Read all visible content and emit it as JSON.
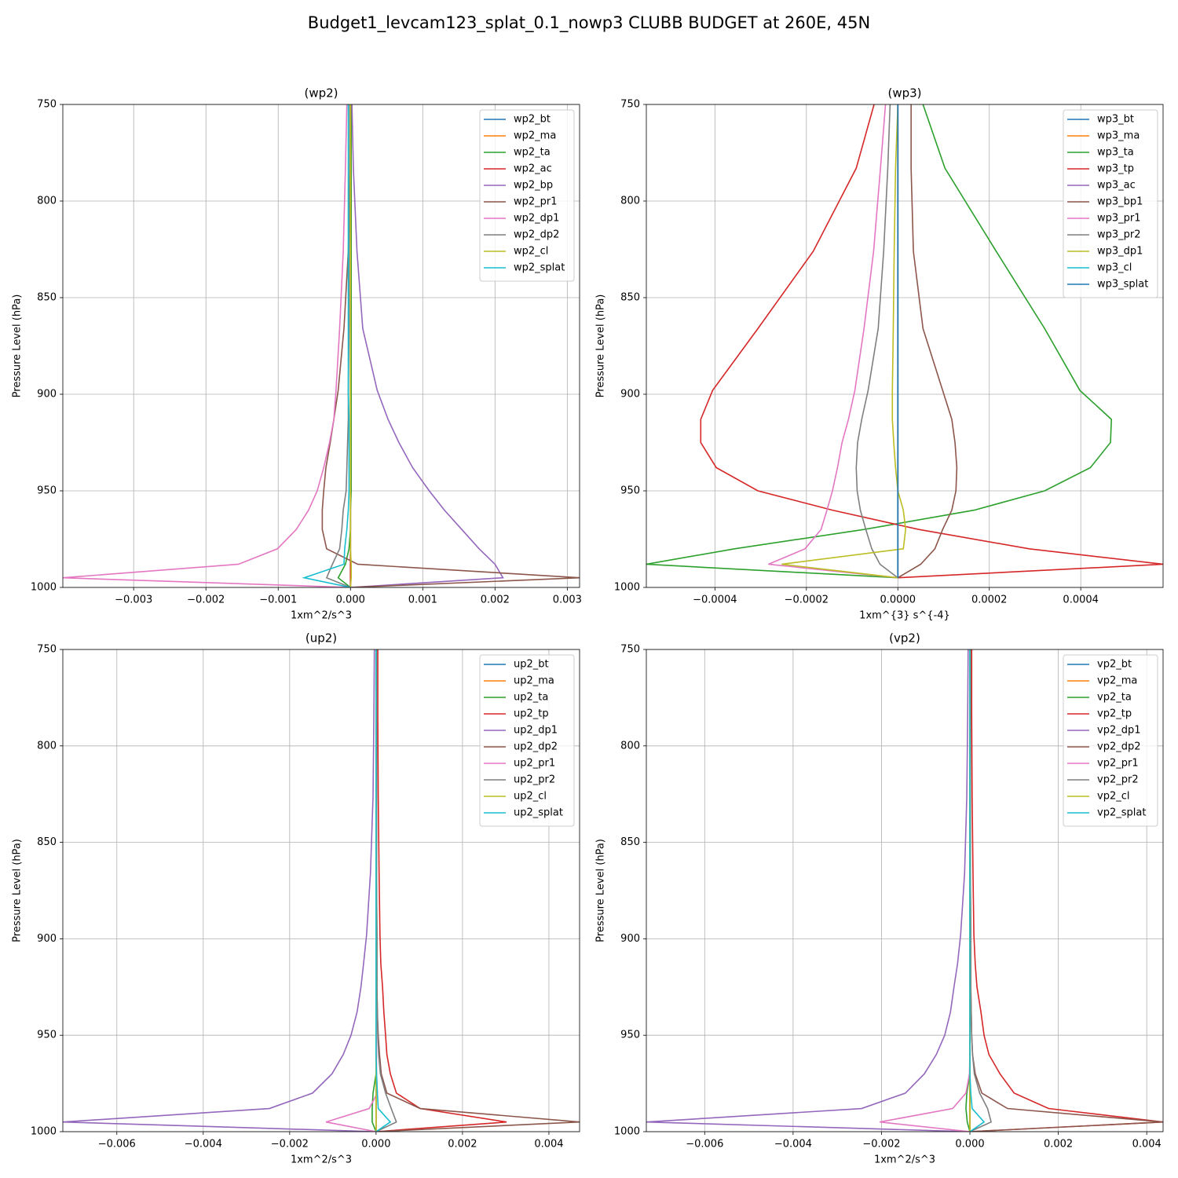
{
  "title": "Budget1_levcam123_splat_0.1_nowp3 CLUBB BUDGET at 260E, 45N",
  "chart_data": [
    {
      "type": "line",
      "title": "(wp2)",
      "xlabel": "1xm^2/s^3",
      "ylabel": "Pressure Level (hPa)",
      "grid": true,
      "legend": "upper right",
      "y": [
        750,
        783,
        826,
        866,
        898,
        913,
        925,
        938,
        950,
        960,
        970,
        980,
        988,
        995,
        1000
      ],
      "ylim": [
        1000,
        750
      ],
      "yticks": [
        750,
        800,
        850,
        900,
        950,
        1000
      ],
      "xlim": [
        -0.00398,
        0.00317
      ],
      "xticks": [
        {
          "value": -0.003,
          "label": "−0.003"
        },
        {
          "value": -0.002,
          "label": "−0.002"
        },
        {
          "value": -0.001,
          "label": "−0.001"
        },
        {
          "value": 0,
          "label": "0.000"
        },
        0.001,
        0.002,
        0.003
      ],
      "series": [
        {
          "name": "wp2_bt",
          "color": "#1f77b4",
          "values": [
            0,
            0,
            0,
            0,
            0,
            0,
            0,
            0,
            0,
            0,
            0,
            0,
            0,
            0,
            0
          ]
        },
        {
          "name": "wp2_ma",
          "color": "#ff7f0e",
          "values": [
            0,
            0,
            0,
            0,
            0,
            0,
            0,
            0,
            0,
            0,
            0,
            0,
            0,
            0,
            0
          ]
        },
        {
          "name": "wp2_ta",
          "color": "#2ca02c",
          "values": [
            1e-05,
            1e-05,
            1e-05,
            1e-05,
            1e-05,
            1e-05,
            1e-05,
            1e-05,
            1e-05,
            0,
            0,
            -2e-05,
            -7e-05,
            -0.00017,
            0
          ]
        },
        {
          "name": "wp2_ac",
          "color": "#d62728",
          "values": [
            0,
            0,
            0,
            0,
            0,
            0,
            0,
            0,
            0,
            0,
            0,
            0,
            0,
            0,
            0
          ]
        },
        {
          "name": "wp2_bp",
          "color": "#9467bd",
          "values": [
            2e-05,
            4e-05,
            9e-05,
            0.00017,
            0.00037,
            0.00052,
            0.00067,
            0.00086,
            0.00109,
            0.0013,
            0.00154,
            0.00178,
            0.002,
            0.00211,
            0
          ]
        },
        {
          "name": "wp2_pr1",
          "color": "#8c564b",
          "values": [
            0,
            -1e-05,
            -3e-05,
            -9e-05,
            -0.00017,
            -0.00023,
            -0.00028,
            -0.00034,
            -0.00037,
            -0.00039,
            -0.00039,
            -0.00033,
            0.0001,
            0.00317,
            0
          ]
        },
        {
          "name": "wp2_dp1",
          "color": "#e377c2",
          "values": [
            -5e-05,
            -7e-05,
            -0.0001,
            -0.00015,
            -0.0002,
            -0.00023,
            -0.00029,
            -0.00037,
            -0.00046,
            -0.00058,
            -0.00075,
            -0.00101,
            -0.00155,
            -0.00398,
            0
          ]
        },
        {
          "name": "wp2_dp2",
          "color": "#7f7f7f",
          "values": [
            -1e-05,
            -1e-05,
            -2e-05,
            -2e-05,
            -3e-05,
            -3e-05,
            -4e-05,
            -5e-05,
            -6e-05,
            -0.0001,
            -0.00012,
            -0.00015,
            -0.00025,
            -0.00033,
            0
          ]
        },
        {
          "name": "wp2_cl",
          "color": "#bcbd22",
          "values": [
            0,
            0,
            0,
            0,
            0,
            0,
            0,
            0,
            0,
            0,
            0,
            0,
            1e-05,
            1e-05,
            0
          ]
        },
        {
          "name": "wp2_splat",
          "color": "#17becf",
          "values": [
            -3e-05,
            -3e-05,
            -3e-05,
            -3e-05,
            -3e-05,
            -2e-05,
            -2e-05,
            -2e-05,
            -2e-05,
            -3e-05,
            -5e-05,
            -8e-05,
            -9e-05,
            -0.00064,
            0
          ]
        }
      ]
    },
    {
      "type": "line",
      "title": "(wp3)",
      "xlabel": "1xm^{3} s^{-4}",
      "ylabel": "Pressure Level (hPa)",
      "grid": true,
      "legend": "upper right",
      "y": [
        750,
        783,
        826,
        866,
        898,
        913,
        925,
        938,
        950,
        960,
        970,
        980,
        988,
        995,
        1000
      ],
      "ylim": [
        1000,
        750
      ],
      "yticks": [
        750,
        800,
        850,
        900,
        950,
        1000
      ],
      "xlim": [
        -0.00055,
        0.00058
      ],
      "xticks": [
        {
          "value": -0.0004,
          "label": "−0.0004"
        },
        {
          "value": -0.0002,
          "label": "−0.0002"
        },
        {
          "value": 0,
          "label": "0.0000"
        },
        0.0002,
        0.0004
      ],
      "series": [
        {
          "name": "wp3_bt",
          "color": "#1f77b4",
          "values": [
            0,
            0,
            0,
            0,
            0,
            0,
            0,
            0,
            0,
            0,
            0,
            0,
            0,
            0,
            null
          ]
        },
        {
          "name": "wp3_ma",
          "color": "#ff7f0e",
          "values": [
            0,
            0,
            0,
            0,
            0,
            0,
            0,
            0,
            0,
            0,
            0,
            0,
            0,
            0,
            null
          ]
        },
        {
          "name": "wp3_ta",
          "color": "#2ca02c",
          "values": [
            5.5e-05,
            0.000103,
            0.000215,
            0.000321,
            0.000398,
            0.000467,
            0.000465,
            0.000421,
            0.000321,
            0.000167,
            -7.4e-05,
            -0.000357,
            -0.00055,
            0,
            null
          ]
        },
        {
          "name": "wp3_tp",
          "color": "#d62728",
          "values": [
            -5.2e-05,
            -9.1e-05,
            -0.000185,
            -0.000306,
            -0.000405,
            -0.000431,
            -0.000431,
            -0.000397,
            -0.000306,
            -0.000143,
            4.6e-05,
            0.000287,
            0.00058,
            0,
            null
          ]
        },
        {
          "name": "wp3_ac",
          "color": "#9467bd",
          "values": [
            0,
            0,
            0,
            0,
            0,
            0,
            0,
            0,
            0,
            0,
            0,
            0,
            0,
            0,
            null
          ]
        },
        {
          "name": "wp3_bp1",
          "color": "#8c564b",
          "values": [
            2.9e-05,
            2.9e-05,
            3.4e-05,
            5.5e-05,
            9.8e-05,
            0.000118,
            0.000125,
            0.000129,
            0.000127,
            0.000118,
            9.8e-05,
            8.1e-05,
            5e-05,
            0,
            null
          ]
        },
        {
          "name": "wp3_pr1",
          "color": "#e377c2",
          "values": [
            -2.7e-05,
            -3.8e-05,
            -5.3e-05,
            -7.4e-05,
            -9.4e-05,
            -0.000108,
            -0.000122,
            -0.000132,
            -0.000143,
            -0.000155,
            -0.000168,
            -0.000203,
            -0.000283,
            0,
            null
          ]
        },
        {
          "name": "wp3_pr2",
          "color": "#7f7f7f",
          "values": [
            -1.7e-05,
            -2.2e-05,
            -3.1e-05,
            -4.3e-05,
            -6.5e-05,
            -7.9e-05,
            -8.8e-05,
            -9.1e-05,
            -8.9e-05,
            -8.2e-05,
            -7e-05,
            -5.7e-05,
            -3.9e-05,
            0,
            null
          ]
        },
        {
          "name": "wp3_dp1",
          "color": "#bcbd22",
          "values": [
            0,
            -5e-06,
            -8e-06,
            -1e-05,
            -1.2e-05,
            -1.2e-05,
            -9e-06,
            -5e-06,
            0,
            1.2e-05,
            1.7e-05,
            1.2e-05,
            -0.000254,
            0,
            null
          ]
        },
        {
          "name": "wp3_cl",
          "color": "#17becf",
          "values": [
            0,
            0,
            0,
            0,
            0,
            0,
            0,
            0,
            0,
            0,
            0,
            0,
            0,
            0,
            null
          ]
        },
        {
          "name": "wp3_splat",
          "color": "#1f77b4",
          "values": [
            0,
            0,
            0,
            0,
            0,
            0,
            0,
            0,
            0,
            0,
            0,
            0,
            0,
            0,
            null
          ]
        }
      ]
    },
    {
      "type": "line",
      "title": "(up2)",
      "xlabel": "1xm^2/s^3",
      "ylabel": "Pressure Level (hPa)",
      "grid": true,
      "legend": "upper right",
      "y": [
        750,
        783,
        826,
        866,
        898,
        913,
        925,
        938,
        950,
        960,
        970,
        980,
        988,
        995,
        1000
      ],
      "ylim": [
        1000,
        750
      ],
      "yticks": [
        750,
        800,
        850,
        900,
        950,
        1000
      ],
      "xlim": [
        -0.00725,
        0.00471
      ],
      "xticks": [
        {
          "value": -0.006,
          "label": "−0.006"
        },
        {
          "value": -0.004,
          "label": "−0.004"
        },
        {
          "value": -0.002,
          "label": "−0.002"
        },
        {
          "value": 0,
          "label": "0.000"
        },
        0.002,
        0.004
      ],
      "series": [
        {
          "name": "up2_bt",
          "color": "#1f77b4",
          "values": [
            0,
            0,
            0,
            0,
            0,
            0,
            0,
            0,
            0,
            0,
            0,
            0,
            0,
            0,
            0
          ]
        },
        {
          "name": "up2_ma",
          "color": "#ff7f0e",
          "values": [
            0,
            0,
            0,
            0,
            0,
            0,
            0,
            0,
            0,
            0,
            0,
            0,
            0,
            0,
            0
          ]
        },
        {
          "name": "up2_ta",
          "color": "#2ca02c",
          "values": [
            0,
            0,
            0,
            0,
            0,
            0,
            0,
            0,
            0,
            0,
            0,
            -7e-05,
            -9e-05,
            -9e-05,
            0
          ]
        },
        {
          "name": "up2_tp",
          "color": "#d62728",
          "values": [
            4e-05,
            4e-05,
            5e-05,
            7e-05,
            9e-05,
            0.00011,
            0.00015,
            0.00018,
            0.00022,
            0.00025,
            0.00033,
            0.00047,
            0.00102,
            0.00302,
            0
          ]
        },
        {
          "name": "up2_dp1",
          "color": "#9467bd",
          "values": [
            -4e-05,
            -5e-05,
            -7e-05,
            -0.00013,
            -0.00022,
            -0.00029,
            -0.00035,
            -0.00044,
            -0.00058,
            -0.00076,
            -0.00102,
            -0.00147,
            -0.00247,
            -0.00725,
            0
          ]
        },
        {
          "name": "up2_dp2",
          "color": "#8c564b",
          "values": [
            1e-05,
            1e-05,
            1e-05,
            1e-05,
            2e-05,
            2e-05,
            2e-05,
            3e-05,
            5e-05,
            8e-05,
            0.00012,
            0.00025,
            0.00102,
            0.00471,
            0
          ]
        },
        {
          "name": "up2_pr1",
          "color": "#e377c2",
          "values": [
            1e-05,
            1e-05,
            1e-05,
            1e-05,
            1e-05,
            1e-05,
            1e-05,
            1e-05,
            1e-05,
            1e-05,
            1e-05,
            3e-05,
            -0.00016,
            -0.00116,
            0
          ]
        },
        {
          "name": "up2_pr2",
          "color": "#7f7f7f",
          "values": [
            1e-05,
            1e-05,
            1e-05,
            1e-05,
            2e-05,
            2e-05,
            2e-05,
            3e-05,
            4e-05,
            6e-05,
            0.0001,
            0.00022,
            0.00035,
            0.00047,
            0
          ]
        },
        {
          "name": "up2_cl",
          "color": "#bcbd22",
          "values": [
            0,
            0,
            0,
            0,
            0,
            0,
            0,
            0,
            0,
            0,
            0,
            0,
            0,
            0,
            0
          ]
        },
        {
          "name": "up2_splat",
          "color": "#17becf",
          "values": [
            0,
            0,
            0,
            0,
            0,
            0,
            0,
            0,
            0,
            0,
            1e-05,
            3e-05,
            5e-05,
            0.00033,
            0
          ]
        }
      ]
    },
    {
      "type": "line",
      "title": "(vp2)",
      "xlabel": "1xm^2/s^3",
      "ylabel": "Pressure Level (hPa)",
      "grid": true,
      "legend": "upper right",
      "y": [
        750,
        783,
        826,
        866,
        898,
        913,
        925,
        938,
        950,
        960,
        970,
        980,
        988,
        995,
        1000
      ],
      "ylim": [
        1000,
        750
      ],
      "yticks": [
        750,
        800,
        850,
        900,
        950,
        1000
      ],
      "xlim": [
        -0.00732,
        0.00437
      ],
      "xticks": [
        {
          "value": -0.006,
          "label": "−0.006"
        },
        {
          "value": -0.004,
          "label": "−0.004"
        },
        {
          "value": -0.002,
          "label": "−0.002"
        },
        {
          "value": 0,
          "label": "0.000"
        },
        0.002,
        0.004
      ],
      "series": [
        {
          "name": "vp2_bt",
          "color": "#1f77b4",
          "values": [
            0,
            0,
            0,
            0,
            0,
            0,
            0,
            0,
            0,
            0,
            0,
            0,
            0,
            0,
            0
          ]
        },
        {
          "name": "vp2_ma",
          "color": "#ff7f0e",
          "values": [
            0,
            0,
            0,
            0,
            0,
            0,
            0,
            0,
            0,
            0,
            0,
            0,
            0,
            0,
            0
          ]
        },
        {
          "name": "vp2_ta",
          "color": "#2ca02c",
          "values": [
            0,
            0,
            0,
            0,
            0,
            0,
            0,
            0,
            0,
            0,
            0,
            -7e-05,
            -9e-05,
            -6e-05,
            0
          ]
        },
        {
          "name": "vp2_tp",
          "color": "#d62728",
          "values": [
            4e-05,
            4e-05,
            5e-05,
            7e-05,
            9e-05,
            0.00012,
            0.00016,
            0.00025,
            0.00032,
            0.00043,
            0.00068,
            0.001,
            0.00178,
            0.00437,
            0
          ]
        },
        {
          "name": "vp2_dp1",
          "color": "#9467bd",
          "values": [
            -4e-05,
            -5e-05,
            -7e-05,
            -0.00012,
            -0.00021,
            -0.00028,
            -0.00036,
            -0.00044,
            -0.00057,
            -0.00076,
            -0.00103,
            -0.00146,
            -0.00245,
            -0.00732,
            0
          ]
        },
        {
          "name": "vp2_dp2",
          "color": "#8c564b",
          "values": [
            1e-05,
            1e-05,
            1e-05,
            1e-05,
            2e-05,
            2e-05,
            2e-05,
            3e-05,
            4e-05,
            6e-05,
            0.00012,
            0.00027,
            0.00085,
            0.00437,
            0
          ]
        },
        {
          "name": "vp2_pr1",
          "color": "#e377c2",
          "values": [
            0,
            0,
            0,
            0,
            0,
            0,
            0,
            0,
            0,
            0,
            -1e-05,
            -9e-05,
            -0.00039,
            -0.00204,
            0
          ]
        },
        {
          "name": "vp2_pr2",
          "color": "#7f7f7f",
          "values": [
            1e-05,
            1e-05,
            1e-05,
            1e-05,
            2e-05,
            2e-05,
            2e-05,
            3e-05,
            4e-05,
            6e-05,
            0.0001,
            0.00022,
            0.0004,
            0.00048,
            0
          ]
        },
        {
          "name": "vp2_cl",
          "color": "#bcbd22",
          "values": [
            0,
            0,
            0,
            0,
            0,
            0,
            0,
            0,
            0,
            0,
            0,
            0,
            0,
            0,
            0
          ]
        },
        {
          "name": "vp2_splat",
          "color": "#17becf",
          "values": [
            0,
            0,
            0,
            0,
            0,
            0,
            0,
            0,
            0,
            0,
            0,
            2e-05,
            5e-05,
            0.00032,
            0
          ]
        }
      ]
    }
  ]
}
